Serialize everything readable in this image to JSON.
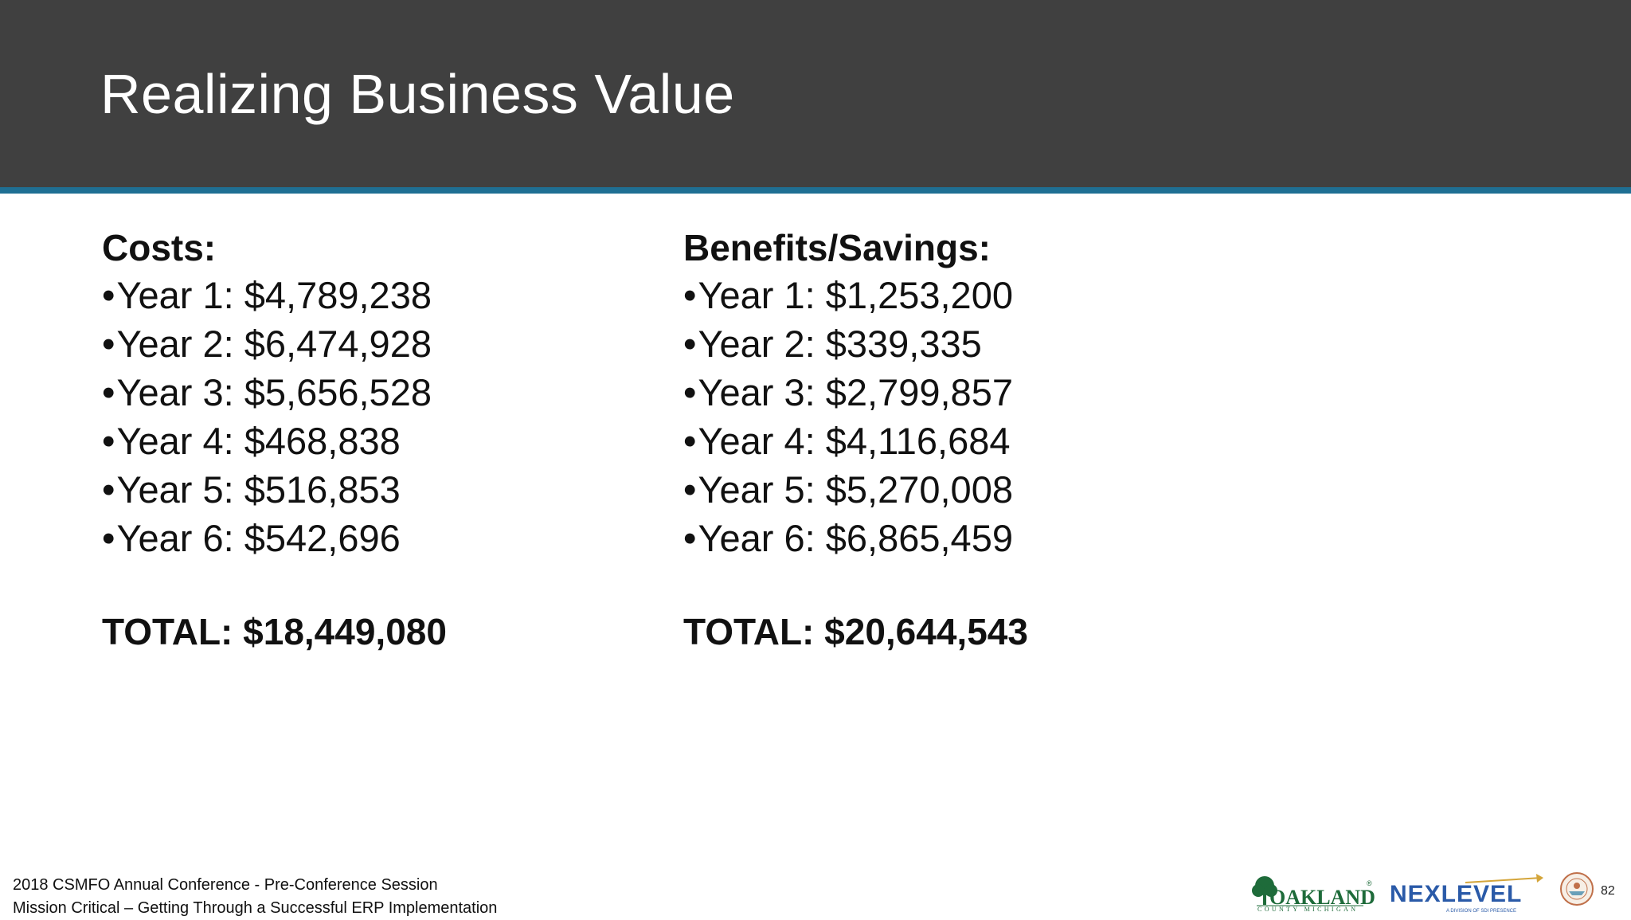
{
  "slide": {
    "title": "Realizing Business Value",
    "page_number": "82"
  },
  "costs": {
    "heading": "Costs:",
    "items": [
      "Year 1: $4,789,238",
      "Year 2: $6,474,928",
      "Year 3: $5,656,528",
      "Year 4: $468,838",
      "Year 5: $516,853",
      "Year 6: $542,696"
    ],
    "total": "TOTAL: $18,449,080"
  },
  "benefits": {
    "heading": "Benefits/Savings:",
    "items": [
      "Year 1: $1,253,200",
      "Year 2: $339,335",
      "Year 3: $2,799,857",
      "Year 4: $4,116,684",
      "Year 5: $5,270,008",
      "Year 6: $6,865,459"
    ],
    "total": "TOTAL: $20,644,543"
  },
  "footer": {
    "line1": "2018 CSMFO Annual Conference - Pre-Conference Session",
    "line2": "Mission Critical – Getting Through a Successful ERP Implementation"
  },
  "logos": {
    "oakland": {
      "name": "OAKLAND",
      "subtitle": "COUNTY MICHIGAN",
      "color": "#1e6b3a"
    },
    "nexlevel": {
      "name": "NEXLEVEL",
      "subtitle": "A DIVISION OF SDI PRESENCE",
      "color": "#2a5aa8",
      "accent": "#d4a53a"
    },
    "seal": {
      "icon": "county-seal-icon",
      "color": "#c0704a"
    }
  },
  "colors": {
    "header_bg": "#404040",
    "header_rule": "#1f6f93",
    "title_text": "#ffffff"
  }
}
